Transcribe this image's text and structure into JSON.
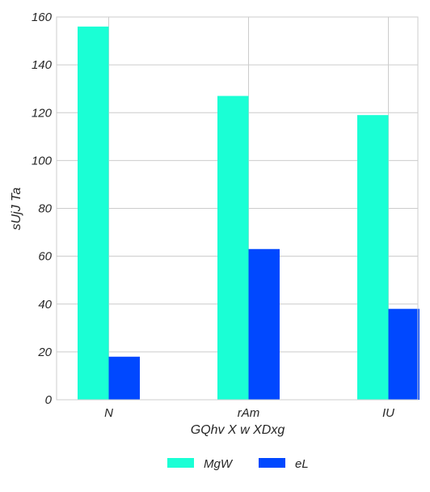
{
  "chart_data": {
    "type": "bar",
    "categories": [
      "N",
      "rAm",
      "IU"
    ],
    "series": [
      {
        "name": "MgW",
        "values": [
          156,
          127,
          119
        ],
        "color": "#1affd5"
      },
      {
        "name": "eL",
        "values": [
          18,
          63,
          38
        ],
        "color": "#0048ff"
      }
    ],
    "xlabel": "GQhv X  w XDxg",
    "ylabel": "sUjJ Ta",
    "ylim": [
      0,
      160
    ],
    "yticks": [
      0,
      20,
      40,
      60,
      80,
      100,
      120,
      140,
      160
    ],
    "grid": true,
    "legend_position": "bottom-center"
  }
}
